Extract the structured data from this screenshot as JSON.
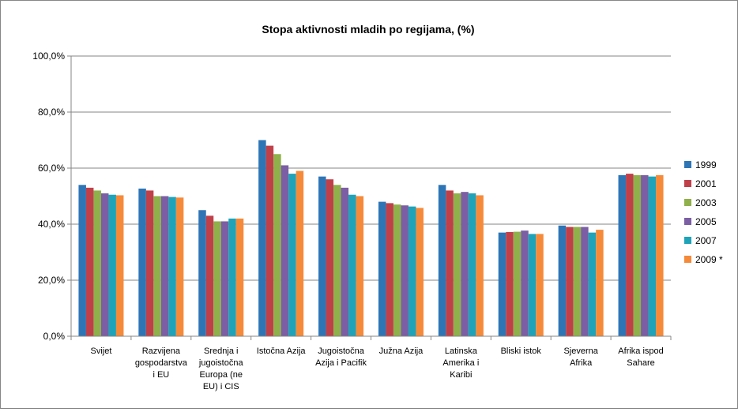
{
  "chart_data": {
    "type": "bar",
    "title": "Stopa aktivnosti mladih po regijama, (%)",
    "xlabel": "",
    "ylabel": "",
    "ylim": [
      0,
      100
    ],
    "yticks": [
      "0,0%",
      "20,0%",
      "40,0%",
      "60,0%",
      "80,0%",
      "100,0%"
    ],
    "grid": true,
    "legend_position": "right",
    "categories": [
      [
        "Svijet"
      ],
      [
        "Razvijena",
        "gospodarstva",
        "i EU"
      ],
      [
        "Srednja i",
        "jugoistočna",
        "Europa (ne",
        "EU) i CIS"
      ],
      [
        "Istočna Azija"
      ],
      [
        "Jugoistočna",
        "Azija i Pacifik"
      ],
      [
        "Južna Azija"
      ],
      [
        "Latinska",
        "Amerika i",
        "Karibi"
      ],
      [
        "Bliski istok"
      ],
      [
        "Sjeverna",
        "Afrika"
      ],
      [
        "Afrika ispod",
        "Sahare"
      ]
    ],
    "series": [
      {
        "name": "1999",
        "color": "#2e75b6",
        "values": [
          54.0,
          52.7,
          45.0,
          70.0,
          57.0,
          48.0,
          54.0,
          37.0,
          39.5,
          57.5
        ]
      },
      {
        "name": "2001",
        "color": "#c0404a",
        "values": [
          53.0,
          52.0,
          43.0,
          68.0,
          56.0,
          47.5,
          52.0,
          37.2,
          39.0,
          58.0
        ]
      },
      {
        "name": "2003",
        "color": "#8fb04a",
        "values": [
          52.0,
          50.0,
          41.0,
          65.0,
          54.0,
          47.0,
          51.0,
          37.3,
          39.0,
          57.5
        ]
      },
      {
        "name": "2005",
        "color": "#7b5ea3",
        "values": [
          51.0,
          50.0,
          41.0,
          61.0,
          53.0,
          46.7,
          51.5,
          37.7,
          39.0,
          57.5
        ]
      },
      {
        "name": "2007",
        "color": "#1fa3b8",
        "values": [
          50.5,
          49.7,
          42.0,
          58.0,
          50.5,
          46.3,
          51.0,
          36.5,
          37.0,
          57.0
        ]
      },
      {
        "name": "2009 *",
        "color": "#f58a3a",
        "values": [
          50.3,
          49.5,
          42.0,
          59.0,
          50.0,
          45.8,
          50.3,
          36.5,
          38.0,
          57.5
        ]
      }
    ]
  }
}
